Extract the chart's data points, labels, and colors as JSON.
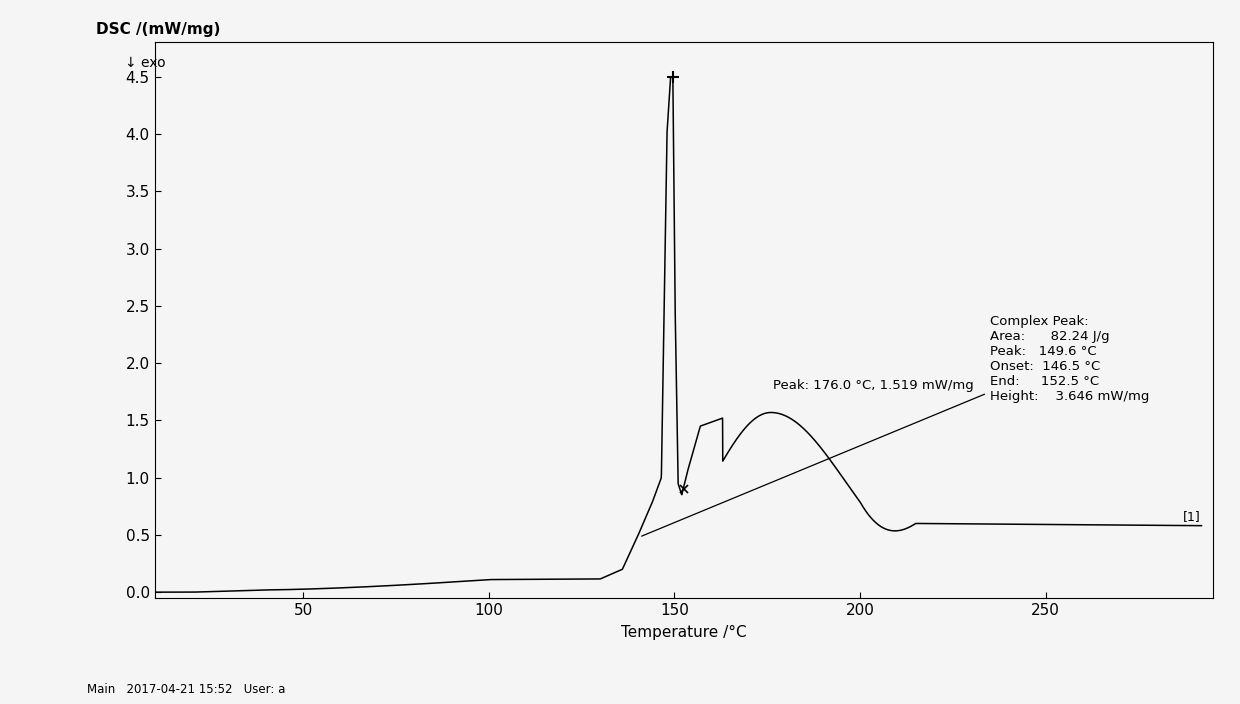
{
  "ylabel": "DSC /(mW/mg)",
  "xlabel": "Temperature /°C",
  "ylim": [
    -0.05,
    4.8
  ],
  "xlim": [
    10,
    295
  ],
  "yticks": [
    0.0,
    0.5,
    1.0,
    1.5,
    2.0,
    2.5,
    3.0,
    3.5,
    4.0,
    4.5
  ],
  "xticks": [
    50,
    100,
    150,
    200,
    250
  ],
  "exo_label": "↓ exo",
  "annotation_complex": "Complex Peak:\nArea:      82.24 J/g\nPeak:   149.6 °C\nOnset:  146.5 °C\nEnd:     152.5 °C\nHeight:    3.646 mW/mg",
  "annotation_peak": "Peak: 176.0 °C, 1.519 mW/mg",
  "footer": "Main   2017-04-21 15:52   User: a",
  "label_1": "[1]",
  "line_color": "#000000",
  "bg_color": "#f5f5f5"
}
